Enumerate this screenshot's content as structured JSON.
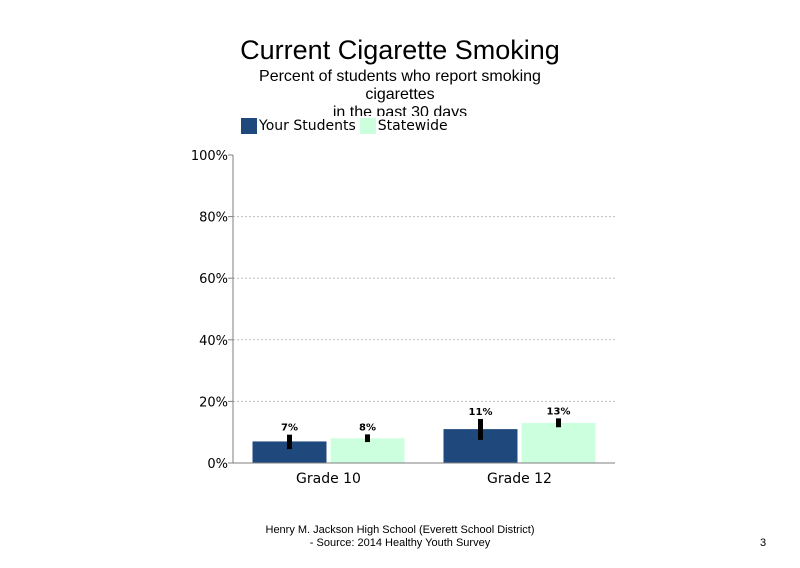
{
  "title": "Current Cigarette Smoking",
  "subtitle_lines": [
    "Percent of students who report smoking",
    "cigarettes",
    "in the past 30 days"
  ],
  "footer": {
    "line1": "Henry M. Jackson High School (Everett School District)",
    "line2": "- Source: 2014 Healthy Youth Survey"
  },
  "page_number": "3",
  "colors": {
    "your_students": "#1f497d",
    "statewide": "#ccffdd",
    "error_bar": "#000000",
    "axis": "#7f7f7f",
    "grid": "#bfbfbf"
  },
  "chart_data": {
    "type": "bar",
    "title": "Current Cigarette Smoking",
    "categories": [
      "Grade 10",
      "Grade 12"
    ],
    "series": [
      {
        "name": "Your Students",
        "values": [
          7,
          11
        ],
        "labels": [
          "7%",
          "11%"
        ],
        "error_low": [
          4.5,
          7.5
        ],
        "error_high": [
          9.2,
          14.3
        ]
      },
      {
        "name": "Statewide",
        "values": [
          8,
          13
        ],
        "labels": [
          "8%",
          "13%"
        ],
        "error_low": [
          6.8,
          11.6
        ],
        "error_high": [
          9.3,
          14.5
        ]
      }
    ],
    "ylim": [
      0,
      100
    ],
    "yticks": [
      0,
      20,
      40,
      60,
      80,
      100
    ],
    "ytick_labels": [
      "0%",
      "20%",
      "40%",
      "60%",
      "80%",
      "100%"
    ],
    "grid": true,
    "legend_position": "top-left"
  }
}
